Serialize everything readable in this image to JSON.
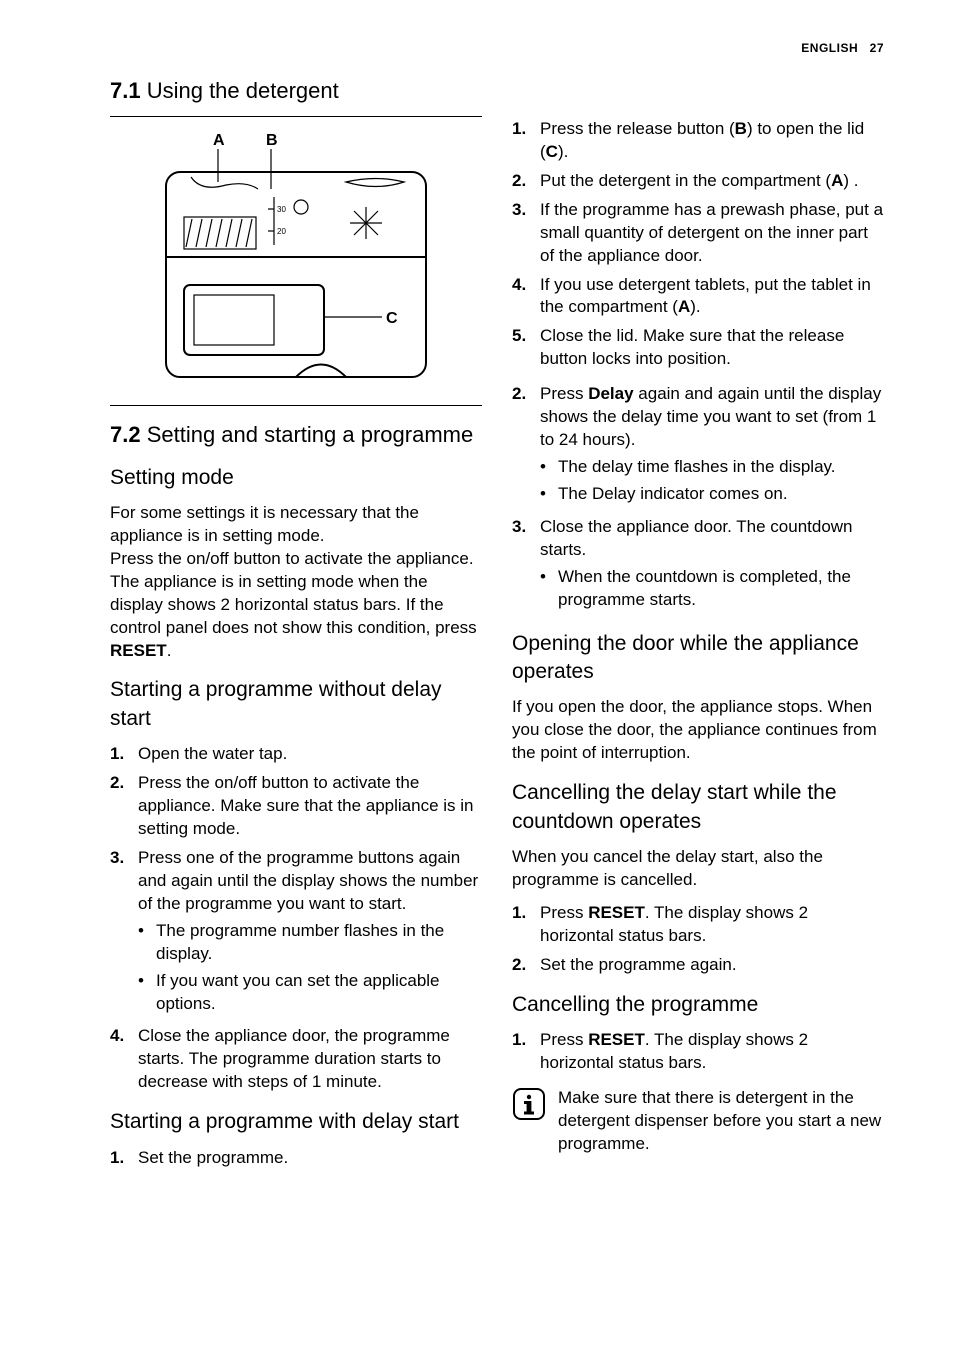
{
  "header": {
    "lang": "ENGLISH",
    "page": "27"
  },
  "s71": {
    "heading_num": "7.1",
    "heading_text": " Using the detergent",
    "labels": {
      "A": "A",
      "B": "B",
      "C": "C",
      "g30": "30",
      "g20": "20"
    },
    "steps": [
      "Press the release button (<b>B</b>) to open the lid (<b>C</b>).",
      "Put the detergent in the compartment (<b>A</b>) .",
      "If the programme has a prewash phase, put a small quantity of detergent on the inner part of the appliance door.",
      "If you use detergent tablets, put the tablet in the compartment (<b>A</b>).",
      "Close the lid. Make sure that the release button locks into position."
    ]
  },
  "s72": {
    "heading_num": "7.2",
    "heading_text": " Setting and starting a programme",
    "setting_mode": {
      "title": "Setting mode",
      "body": "For some settings it is necessary that the appliance is in setting mode.\nPress the on/off button to activate the appliance. The appliance is in setting mode when the display shows 2 horizontal status bars. If the control panel does not show this condition, press <b>RESET</b>."
    },
    "start_no_delay": {
      "title": "Starting a programme without delay start",
      "steps": [
        {
          "t": "Open the water tap."
        },
        {
          "t": "Press the on/off button to activate the appliance. Make sure that the appliance is in setting mode."
        },
        {
          "t": "Press one of the programme buttons again and again until the display shows the number of the programme you want to start.",
          "sub": [
            "The programme number flashes in the display.",
            "If you want you can set the applicable options."
          ]
        },
        {
          "t": "Close the appliance door, the programme starts. The programme duration starts to decrease with steps of 1 minute."
        }
      ]
    },
    "start_with_delay": {
      "title": "Starting a programme with delay start",
      "left_steps": [
        {
          "t": "Set the programme."
        }
      ],
      "right_steps": [
        {
          "n": "2.",
          "t": "Press <b>Delay</b> again and again until the display shows the delay time you want to set (from 1 to 24 hours).",
          "sub": [
            "The delay time flashes in the display.",
            "The Delay indicator comes on."
          ]
        },
        {
          "n": "3.",
          "t": "Close the appliance door. The countdown starts.",
          "sub": [
            "When the countdown is completed, the programme starts."
          ]
        }
      ]
    },
    "open_door": {
      "title": "Opening the door while the appliance operates",
      "body": "If you open the door, the appliance stops. When you close the door, the appliance continues from the point of interruption."
    },
    "cancel_delay": {
      "title": "Cancelling the delay start while the countdown operates",
      "intro": "When you cancel the delay start, also the programme is cancelled.",
      "steps": [
        "Press <b>RESET</b>. The display shows 2 horizontal status bars.",
        "Set the programme again."
      ]
    },
    "cancel_prog": {
      "title": "Cancelling the programme",
      "steps": [
        "Press <b>RESET</b>. The display shows 2 horizontal status bars."
      ],
      "info": "Make sure that there is detergent in the detergent dispenser before you start a new programme."
    }
  }
}
